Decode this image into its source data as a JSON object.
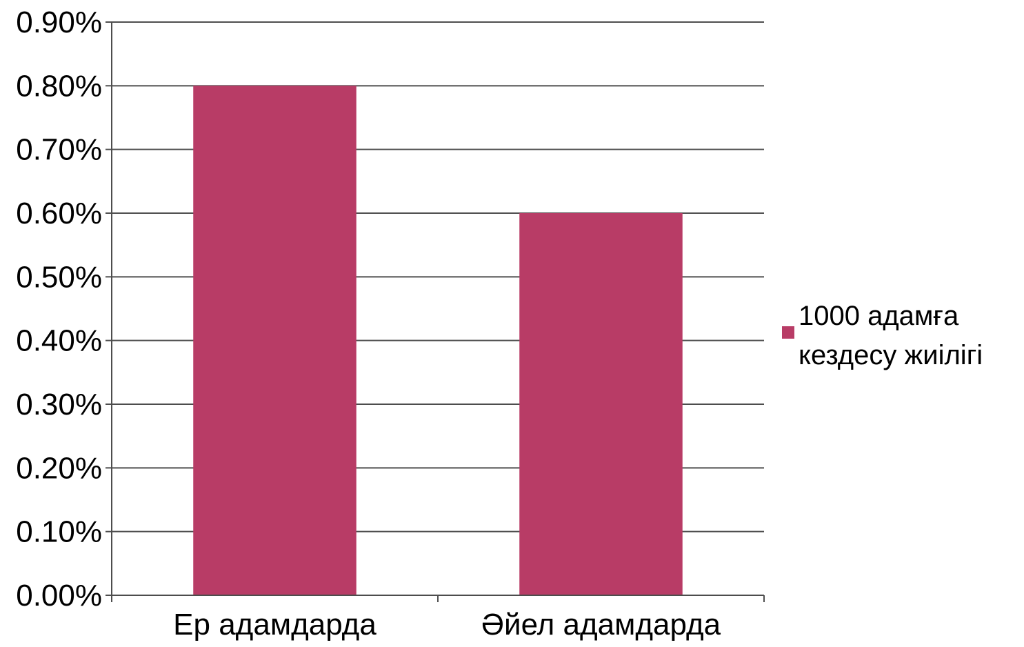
{
  "chart_data": {
    "type": "bar",
    "categories": [
      "Ер адамдарда",
      "Әйел адамдарда"
    ],
    "series": [
      {
        "name": "1000 адамға кездесу жиілігі",
        "values": [
          0.8,
          0.6
        ],
        "color": "#b83c66"
      }
    ],
    "ylim": [
      0,
      0.9
    ],
    "yticks": [
      "0.00%",
      "0.10%",
      "0.20%",
      "0.30%",
      "0.40%",
      "0.50%",
      "0.60%",
      "0.70%",
      "0.80%",
      "0.90%"
    ],
    "y_unit": "%",
    "grid": true,
    "legend": {
      "position": "right",
      "lines": [
        "1000 адамға",
        "кездесу жиілігі"
      ]
    },
    "colors": {
      "bar": "#b83c66",
      "grid": "#4d4d4d",
      "axis": "#4d4d4d"
    }
  }
}
